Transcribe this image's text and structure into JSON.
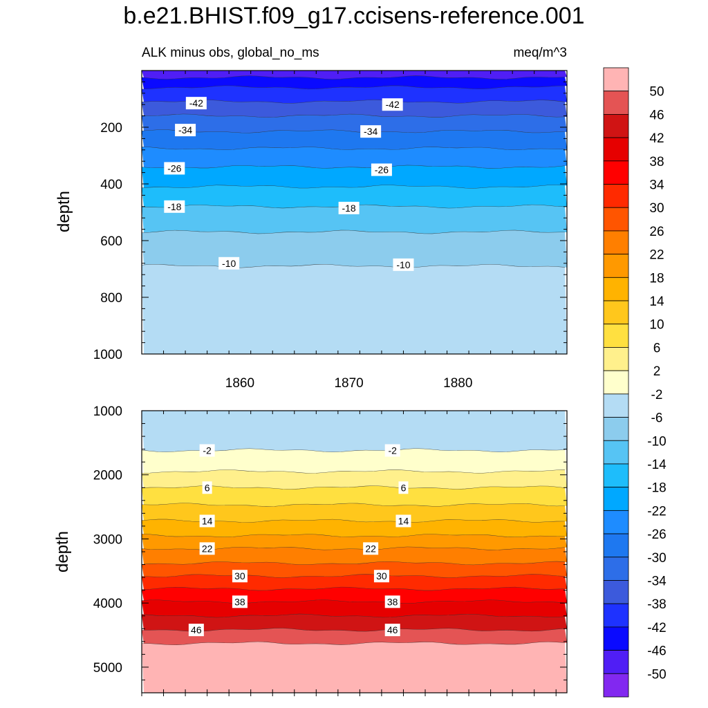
{
  "chart_data": {
    "type": "heatmap",
    "title": "b.e21.BHIST.f09_g17.ccisens-reference.001",
    "subtitle_left": "ALK minus obs, global_no_ms",
    "subtitle_right": "meq/m^3",
    "colorbar": {
      "labels": [
        "50",
        "46",
        "42",
        "38",
        "34",
        "30",
        "26",
        "22",
        "18",
        "14",
        "10",
        "6",
        "2",
        "-2",
        "-6",
        "-10",
        "-14",
        "-18",
        "-22",
        "-26",
        "-30",
        "-34",
        "-38",
        "-42",
        "-46",
        "-50"
      ],
      "colors": [
        "#ffb4b4",
        "#e45454",
        "#d01414",
        "#e60000",
        "#ff0000",
        "#ff2a00",
        "#ff5500",
        "#ff7f00",
        "#ff9900",
        "#ffb300",
        "#ffc71c",
        "#ffe040",
        "#fff08c",
        "#ffffcc",
        "#b4dcf4",
        "#8ccced",
        "#56c4f4",
        "#1ebdfb",
        "#00a8ff",
        "#1e8cff",
        "#1e78f0",
        "#2d6ee8",
        "#3c5adc",
        "#1e32ff",
        "#0a0aff",
        "#501ef5",
        "#8228f0"
      ]
    },
    "x_axis": {
      "xlim": [
        1851,
        1890
      ],
      "ticks": [
        "1860",
        "1870",
        "1880"
      ]
    },
    "panels": [
      {
        "name": "upper",
        "ylabel": "depth",
        "ylim": [
          0,
          1000
        ],
        "yticks": [
          "200",
          "400",
          "600",
          "800",
          "1000"
        ],
        "bands": [
          {
            "top": 0,
            "bottom": 25,
            "level": -50
          },
          {
            "top": 25,
            "bottom": 60,
            "level": -46
          },
          {
            "top": 60,
            "bottom": 110,
            "level": -42
          },
          {
            "top": 110,
            "bottom": 160,
            "level": -38
          },
          {
            "top": 160,
            "bottom": 215,
            "level": -34
          },
          {
            "top": 215,
            "bottom": 275,
            "level": -30
          },
          {
            "top": 275,
            "bottom": 340,
            "level": -26
          },
          {
            "top": 340,
            "bottom": 410,
            "level": -22
          },
          {
            "top": 410,
            "bottom": 480,
            "level": -18
          },
          {
            "top": 480,
            "bottom": 570,
            "level": -14
          },
          {
            "top": 570,
            "bottom": 690,
            "level": -10
          },
          {
            "top": 690,
            "bottom": 1000,
            "level": -6
          }
        ],
        "contour_labels": [
          {
            "text": "-42",
            "x": 1856,
            "depth": 115
          },
          {
            "text": "-42",
            "x": 1874,
            "depth": 120
          },
          {
            "text": "-34",
            "x": 1855,
            "depth": 210
          },
          {
            "text": "-34",
            "x": 1872,
            "depth": 215
          },
          {
            "text": "-26",
            "x": 1854,
            "depth": 345
          },
          {
            "text": "-26",
            "x": 1873,
            "depth": 350
          },
          {
            "text": "-18",
            "x": 1854,
            "depth": 480
          },
          {
            "text": "-18",
            "x": 1870,
            "depth": 485
          },
          {
            "text": "-10",
            "x": 1859,
            "depth": 680
          },
          {
            "text": "-10",
            "x": 1875,
            "depth": 685
          }
        ]
      },
      {
        "name": "lower",
        "ylabel": "depth",
        "ylim": [
          1000,
          5400
        ],
        "yticks": [
          "1000",
          "2000",
          "3000",
          "4000",
          "5000"
        ],
        "bands": [
          {
            "top": 1000,
            "bottom": 1620,
            "level": -6
          },
          {
            "top": 1620,
            "bottom": 1950,
            "level": -2
          },
          {
            "top": 1950,
            "bottom": 2200,
            "level": 2
          },
          {
            "top": 2200,
            "bottom": 2470,
            "level": 6
          },
          {
            "top": 2470,
            "bottom": 2720,
            "level": 10
          },
          {
            "top": 2720,
            "bottom": 2950,
            "level": 14
          },
          {
            "top": 2950,
            "bottom": 3150,
            "level": 18
          },
          {
            "top": 3150,
            "bottom": 3380,
            "level": 22
          },
          {
            "top": 3380,
            "bottom": 3580,
            "level": 26
          },
          {
            "top": 3580,
            "bottom": 3780,
            "level": 30
          },
          {
            "top": 3780,
            "bottom": 3980,
            "level": 34
          },
          {
            "top": 3980,
            "bottom": 4200,
            "level": 38
          },
          {
            "top": 4200,
            "bottom": 4420,
            "level": 42
          },
          {
            "top": 4420,
            "bottom": 4630,
            "level": 46
          },
          {
            "top": 4630,
            "bottom": 5400,
            "level": 50
          }
        ],
        "contour_labels": [
          {
            "text": "-2",
            "x": 1857,
            "depth": 1620
          },
          {
            "text": "-2",
            "x": 1874,
            "depth": 1620
          },
          {
            "text": "6",
            "x": 1857,
            "depth": 2200
          },
          {
            "text": "6",
            "x": 1875,
            "depth": 2200
          },
          {
            "text": "14",
            "x": 1857,
            "depth": 2720
          },
          {
            "text": "14",
            "x": 1875,
            "depth": 2720
          },
          {
            "text": "22",
            "x": 1857,
            "depth": 3150
          },
          {
            "text": "22",
            "x": 1872,
            "depth": 3150
          },
          {
            "text": "30",
            "x": 1860,
            "depth": 3580
          },
          {
            "text": "30",
            "x": 1873,
            "depth": 3580
          },
          {
            "text": "38",
            "x": 1860,
            "depth": 3980
          },
          {
            "text": "38",
            "x": 1874,
            "depth": 3980
          },
          {
            "text": "46",
            "x": 1856,
            "depth": 4420
          },
          {
            "text": "46",
            "x": 1874,
            "depth": 4420
          }
        ]
      }
    ]
  }
}
